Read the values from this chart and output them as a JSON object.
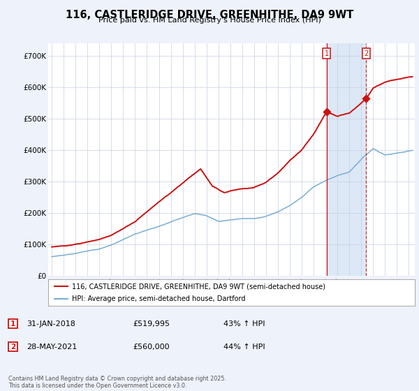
{
  "title": "116, CASTLERIDGE DRIVE, GREENHITHE, DA9 9WT",
  "subtitle": "Price paid vs. HM Land Registry's House Price Index (HPI)",
  "ylabel_ticks": [
    "£0",
    "£100K",
    "£200K",
    "£300K",
    "£400K",
    "£500K",
    "£600K",
    "£700K"
  ],
  "ytick_vals": [
    0,
    100000,
    200000,
    300000,
    400000,
    500000,
    600000,
    700000
  ],
  "ylim": [
    0,
    740000
  ],
  "xlim_start": 1994.7,
  "xlim_end": 2025.5,
  "legend_line1": "116, CASTLERIDGE DRIVE, GREENHITHE, DA9 9WT (semi-detached house)",
  "legend_line2": "HPI: Average price, semi-detached house, Dartford",
  "marker1_date": 2018.08,
  "marker1_price": 519995,
  "marker2_date": 2021.42,
  "marker2_price": 560000,
  "footer": "Contains HM Land Registry data © Crown copyright and database right 2025.\nThis data is licensed under the Open Government Licence v3.0.",
  "hpi_color": "#7aadd4",
  "price_color": "#cc1111",
  "marker_color": "#cc1111",
  "bg_color": "#eef2fb",
  "grid_color": "#c8cfe0",
  "plot_bg": "#ffffff",
  "span_color": "#dce8f5"
}
